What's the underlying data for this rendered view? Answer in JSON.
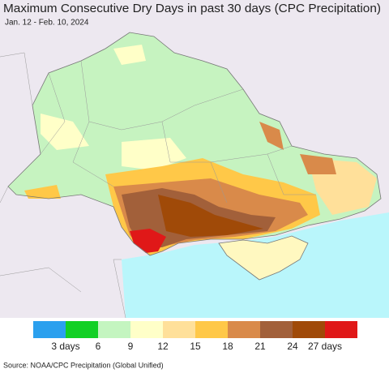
{
  "header": {
    "title": "Maximum Consecutive Dry Days in past 30 days (CPC Precipitation)",
    "subtitle": "Jan. 12 - Feb. 10, 2024"
  },
  "legend": {
    "colors": [
      "#2ba0ee",
      "#12d025",
      "#c4f5c0",
      "#ffffc8",
      "#ffe09a",
      "#ffc848",
      "#d98a4a",
      "#a2603a",
      "#a04a08",
      "#e01818"
    ],
    "ticks": [
      {
        "value": 3,
        "label": "3 days"
      },
      6,
      9,
      12,
      15,
      18,
      21,
      24,
      {
        "value": 27,
        "label": "27 days"
      }
    ]
  },
  "footer": {
    "source": "Source: NOAA/CPC Precipitation (Global Unified)"
  }
}
